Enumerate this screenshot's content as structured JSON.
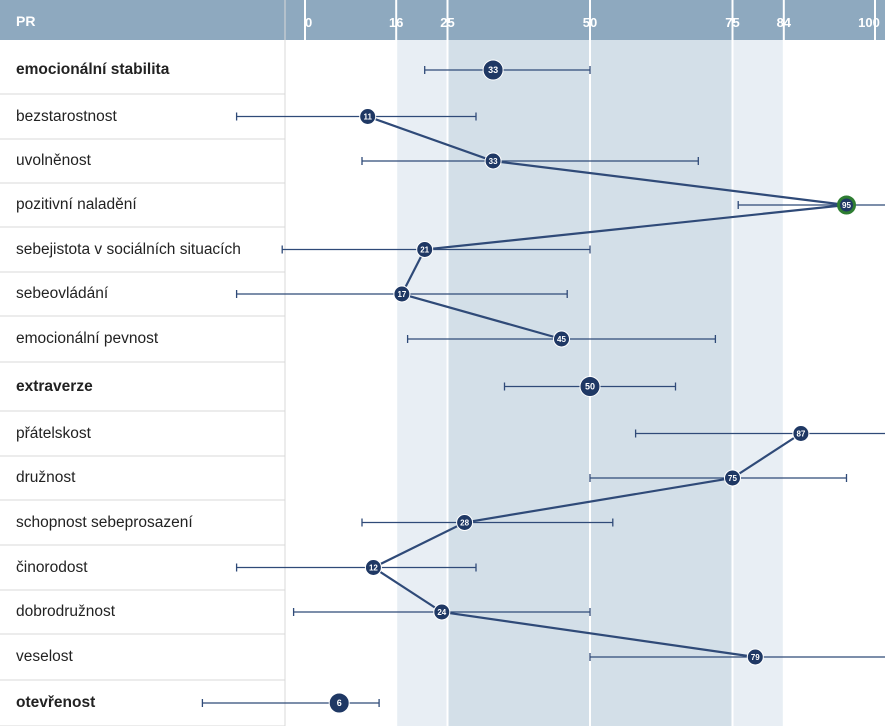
{
  "header": {
    "pr_label": "PR"
  },
  "colors": {
    "header_bg": "#8ea9bf",
    "band_outer": "#e8eef4",
    "band_inner": "#d3dfe8",
    "line": "#2f4a78",
    "marker": "#1f3864",
    "marker_highlight": "#2e7d32",
    "grid": "#ffffff",
    "row_divider": "#d9d9d9"
  },
  "chart_data": {
    "type": "scatter",
    "title": "",
    "xlim": [
      0,
      100
    ],
    "x_ticks": [
      "0",
      "16",
      "25",
      "50",
      "75",
      "84",
      "100"
    ],
    "x_tick_values": [
      0,
      16,
      25,
      50,
      75,
      84,
      100
    ],
    "bands": [
      {
        "from": 16,
        "to": 84,
        "tone": "outer"
      },
      {
        "from": 25,
        "to": 75,
        "tone": "inner"
      }
    ],
    "rows": [
      {
        "label": "emocionální stabilita",
        "bold": true,
        "value": 33,
        "ci": [
          21,
          50
        ],
        "group": "summary"
      },
      {
        "label": "bezstarostnost",
        "bold": false,
        "value": 11,
        "ci": [
          -12,
          30
        ],
        "group": "A"
      },
      {
        "label": "uvolněnost",
        "bold": false,
        "value": 33,
        "ci": [
          10,
          69
        ],
        "group": "A"
      },
      {
        "label": "pozitivní naladění",
        "bold": false,
        "value": 95,
        "ci": [
          76,
          106
        ],
        "group": "A",
        "highlight": true
      },
      {
        "label": "sebejistota v sociálních situacích",
        "bold": false,
        "value": 21,
        "ci": [
          -4,
          50
        ],
        "group": "A"
      },
      {
        "label": "sebeovládání",
        "bold": false,
        "value": 17,
        "ci": [
          -12,
          46
        ],
        "group": "A"
      },
      {
        "label": "emocionální pevnost",
        "bold": false,
        "value": 45,
        "ci": [
          18,
          72
        ],
        "group": "A"
      },
      {
        "label": "extraverze",
        "bold": true,
        "value": 50,
        "ci": [
          35,
          65
        ],
        "group": "summary"
      },
      {
        "label": "přátelskost",
        "bold": false,
        "value": 87,
        "ci": [
          58,
          115
        ],
        "group": "B"
      },
      {
        "label": "družnost",
        "bold": false,
        "value": 75,
        "ci": [
          50,
          95
        ],
        "group": "B"
      },
      {
        "label": "schopnost sebeprosazení",
        "bold": false,
        "value": 28,
        "ci": [
          10,
          54
        ],
        "group": "B"
      },
      {
        "label": "činorodost",
        "bold": false,
        "value": 12,
        "ci": [
          -12,
          30
        ],
        "group": "B"
      },
      {
        "label": "dobrodružnost",
        "bold": false,
        "value": 24,
        "ci": [
          -2,
          50
        ],
        "group": "B"
      },
      {
        "label": "veselost",
        "bold": false,
        "value": 79,
        "ci": [
          50,
          110
        ],
        "group": "B"
      },
      {
        "label": "otevřenost",
        "bold": true,
        "value": 6,
        "ci": [
          -18,
          13
        ],
        "group": "summary"
      }
    ]
  }
}
